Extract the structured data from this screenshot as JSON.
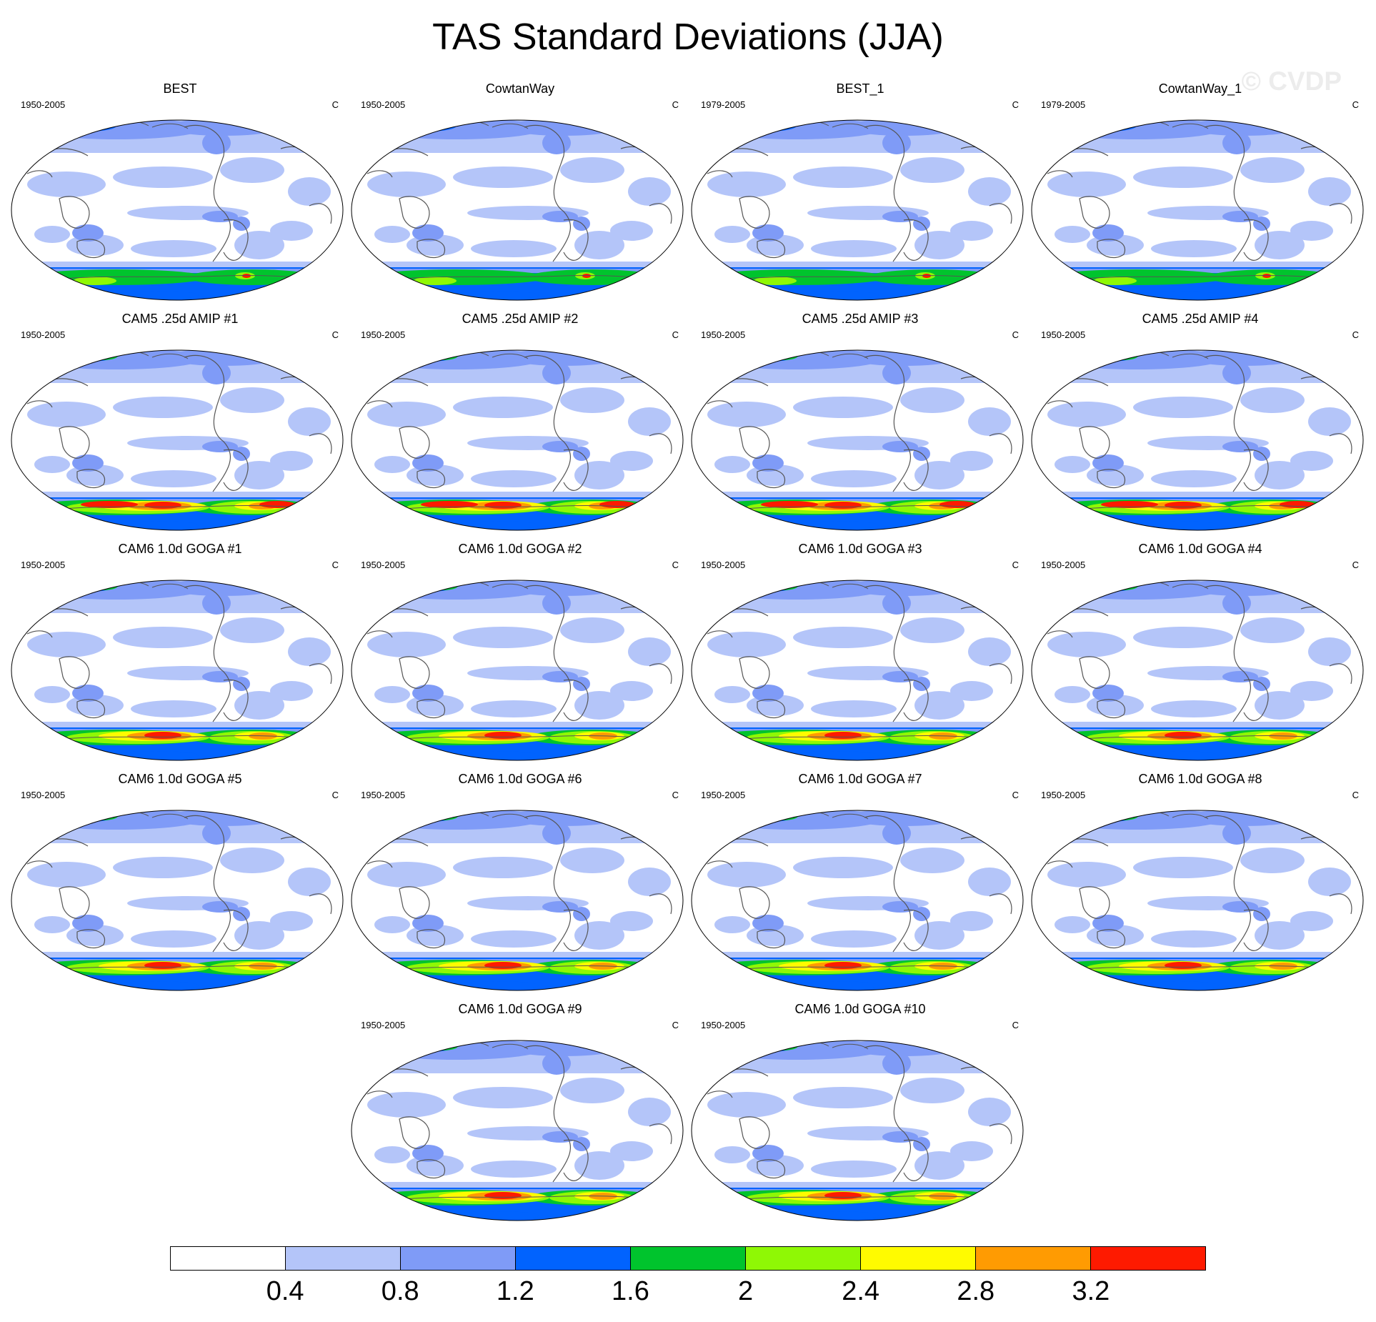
{
  "title": "TAS Standard Deviations (JJA)",
  "watermark": "© CVDP",
  "colorbar": {
    "colors": [
      "#ffffff",
      "#b4c5f9",
      "#7f9bf7",
      "#0163fe",
      "#00c42d",
      "#8ff805",
      "#fffb00",
      "#ff9b02",
      "#fe1a00"
    ],
    "labels": [
      "0.4",
      "0.8",
      "1.2",
      "1.6",
      "2",
      "2.4",
      "2.8",
      "3.2"
    ]
  },
  "panels": [
    {
      "title": "BEST",
      "period": "1950-2005",
      "units": "C"
    },
    {
      "title": "CowtanWay",
      "period": "1950-2005",
      "units": "C"
    },
    {
      "title": "BEST_1",
      "period": "1979-2005",
      "units": "C"
    },
    {
      "title": "CowtanWay_1",
      "period": "1979-2005",
      "units": "C"
    },
    {
      "title": "CAM5 .25d AMIP #1",
      "period": "1950-2005",
      "units": "C"
    },
    {
      "title": "CAM5 .25d AMIP #2",
      "period": "1950-2005",
      "units": "C"
    },
    {
      "title": "CAM5 .25d AMIP #3",
      "period": "1950-2005",
      "units": "C"
    },
    {
      "title": "CAM5 .25d AMIP #4",
      "period": "1950-2005",
      "units": "C"
    },
    {
      "title": "CAM6 1.0d GOGA #1",
      "period": "1950-2005",
      "units": "C"
    },
    {
      "title": "CAM6 1.0d GOGA #2",
      "period": "1950-2005",
      "units": "C"
    },
    {
      "title": "CAM6 1.0d GOGA #3",
      "period": "1950-2005",
      "units": "C"
    },
    {
      "title": "CAM6 1.0d GOGA #4",
      "period": "1950-2005",
      "units": "C"
    },
    {
      "title": "CAM6 1.0d GOGA #5",
      "period": "1950-2005",
      "units": "C"
    },
    {
      "title": "CAM6 1.0d GOGA #6",
      "period": "1950-2005",
      "units": "C"
    },
    {
      "title": "CAM6 1.0d GOGA #7",
      "period": "1950-2005",
      "units": "C"
    },
    {
      "title": "CAM6 1.0d GOGA #8",
      "period": "1950-2005",
      "units": "C"
    },
    {
      "title": "CAM6 1.0d GOGA #9",
      "period": "1950-2005",
      "units": "C"
    },
    {
      "title": "CAM6 1.0d GOGA #10",
      "period": "1950-2005",
      "units": "C"
    }
  ]
}
